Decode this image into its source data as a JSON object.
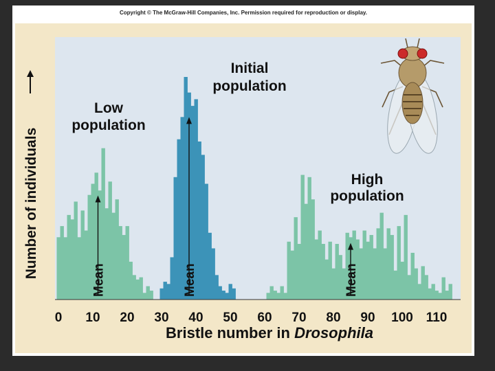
{
  "copyright": "Copyright © The McGraw-Hill Companies, Inc. Permission required for reproduction or display.",
  "chart_data": {
    "type": "bar",
    "xlabel_prefix": "Bristle number in ",
    "xlabel_species": "Drosophila",
    "ylabel": "Number of individuals",
    "xlim": [
      -1,
      117
    ],
    "ylim": [
      0,
      100
    ],
    "x_ticks": [
      0,
      10,
      20,
      30,
      40,
      50,
      60,
      70,
      80,
      90,
      100,
      110
    ],
    "colors": {
      "low": "#7cc4a7",
      "initial": "#3c93b8",
      "high": "#7cc4a7",
      "plot_bg": "#dde6ef",
      "frame_bg": "#f3e7c8"
    },
    "series": [
      {
        "label_line1": "Low",
        "label_line2": "population",
        "mean": 11.5,
        "mean_label": "Mean",
        "color_key": "low",
        "bins": [
          {
            "x": 0,
            "y": 28
          },
          {
            "x": 1,
            "y": 33
          },
          {
            "x": 2,
            "y": 28
          },
          {
            "x": 3,
            "y": 38
          },
          {
            "x": 4,
            "y": 36
          },
          {
            "x": 5,
            "y": 44
          },
          {
            "x": 6,
            "y": 28
          },
          {
            "x": 7,
            "y": 40
          },
          {
            "x": 8,
            "y": 31
          },
          {
            "x": 9,
            "y": 47
          },
          {
            "x": 10,
            "y": 52
          },
          {
            "x": 11,
            "y": 57
          },
          {
            "x": 12,
            "y": 49
          },
          {
            "x": 13,
            "y": 68
          },
          {
            "x": 14,
            "y": 41
          },
          {
            "x": 15,
            "y": 53
          },
          {
            "x": 16,
            "y": 39
          },
          {
            "x": 17,
            "y": 45
          },
          {
            "x": 18,
            "y": 33
          },
          {
            "x": 19,
            "y": 29
          },
          {
            "x": 20,
            "y": 33
          },
          {
            "x": 21,
            "y": 17
          },
          {
            "x": 22,
            "y": 11
          },
          {
            "x": 23,
            "y": 9
          },
          {
            "x": 24,
            "y": 10
          },
          {
            "x": 25,
            "y": 3
          },
          {
            "x": 26,
            "y": 6
          },
          {
            "x": 27,
            "y": 4
          }
        ]
      },
      {
        "label_line1": "Initial",
        "label_line2": "population",
        "mean": 38,
        "mean_label": "Mean",
        "color_key": "initial",
        "bins": [
          {
            "x": 30,
            "y": 5
          },
          {
            "x": 31,
            "y": 8
          },
          {
            "x": 32,
            "y": 7
          },
          {
            "x": 33,
            "y": 19
          },
          {
            "x": 34,
            "y": 55
          },
          {
            "x": 35,
            "y": 72
          },
          {
            "x": 36,
            "y": 82
          },
          {
            "x": 37,
            "y": 100
          },
          {
            "x": 38,
            "y": 93
          },
          {
            "x": 39,
            "y": 87
          },
          {
            "x": 40,
            "y": 90
          },
          {
            "x": 41,
            "y": 71
          },
          {
            "x": 42,
            "y": 65
          },
          {
            "x": 43,
            "y": 52
          },
          {
            "x": 44,
            "y": 30
          },
          {
            "x": 45,
            "y": 23
          },
          {
            "x": 46,
            "y": 11
          },
          {
            "x": 47,
            "y": 6
          },
          {
            "x": 48,
            "y": 4
          },
          {
            "x": 49,
            "y": 3
          },
          {
            "x": 50,
            "y": 7
          },
          {
            "x": 51,
            "y": 5
          }
        ]
      },
      {
        "label_line1": "High",
        "label_line2": "population",
        "mean": 85,
        "mean_label": "Mean",
        "color_key": "high",
        "bins": [
          {
            "x": 61,
            "y": 3
          },
          {
            "x": 62,
            "y": 6
          },
          {
            "x": 63,
            "y": 4
          },
          {
            "x": 64,
            "y": 3
          },
          {
            "x": 65,
            "y": 6
          },
          {
            "x": 66,
            "y": 3
          },
          {
            "x": 67,
            "y": 26
          },
          {
            "x": 68,
            "y": 22
          },
          {
            "x": 69,
            "y": 37
          },
          {
            "x": 70,
            "y": 25
          },
          {
            "x": 71,
            "y": 56
          },
          {
            "x": 72,
            "y": 43
          },
          {
            "x": 73,
            "y": 55
          },
          {
            "x": 74,
            "y": 45
          },
          {
            "x": 75,
            "y": 27
          },
          {
            "x": 76,
            "y": 31
          },
          {
            "x": 77,
            "y": 25
          },
          {
            "x": 78,
            "y": 18
          },
          {
            "x": 79,
            "y": 26
          },
          {
            "x": 80,
            "y": 14
          },
          {
            "x": 81,
            "y": 25
          },
          {
            "x": 82,
            "y": 20
          },
          {
            "x": 83,
            "y": 14
          },
          {
            "x": 84,
            "y": 30
          },
          {
            "x": 85,
            "y": 28
          },
          {
            "x": 86,
            "y": 31
          },
          {
            "x": 87,
            "y": 27
          },
          {
            "x": 88,
            "y": 23
          },
          {
            "x": 89,
            "y": 31
          },
          {
            "x": 90,
            "y": 26
          },
          {
            "x": 91,
            "y": 29
          },
          {
            "x": 92,
            "y": 23
          },
          {
            "x": 93,
            "y": 32
          },
          {
            "x": 94,
            "y": 39
          },
          {
            "x": 95,
            "y": 23
          },
          {
            "x": 96,
            "y": 32
          },
          {
            "x": 97,
            "y": 29
          },
          {
            "x": 98,
            "y": 13
          },
          {
            "x": 99,
            "y": 33
          },
          {
            "x": 100,
            "y": 17
          },
          {
            "x": 101,
            "y": 38
          },
          {
            "x": 102,
            "y": 11
          },
          {
            "x": 103,
            "y": 21
          },
          {
            "x": 104,
            "y": 14
          },
          {
            "x": 105,
            "y": 7
          },
          {
            "x": 106,
            "y": 15
          },
          {
            "x": 107,
            "y": 11
          },
          {
            "x": 108,
            "y": 5
          },
          {
            "x": 109,
            "y": 7
          },
          {
            "x": 110,
            "y": 4
          },
          {
            "x": 111,
            "y": 3
          },
          {
            "x": 112,
            "y": 10
          },
          {
            "x": 113,
            "y": 4
          },
          {
            "x": 114,
            "y": 7
          }
        ]
      }
    ]
  }
}
